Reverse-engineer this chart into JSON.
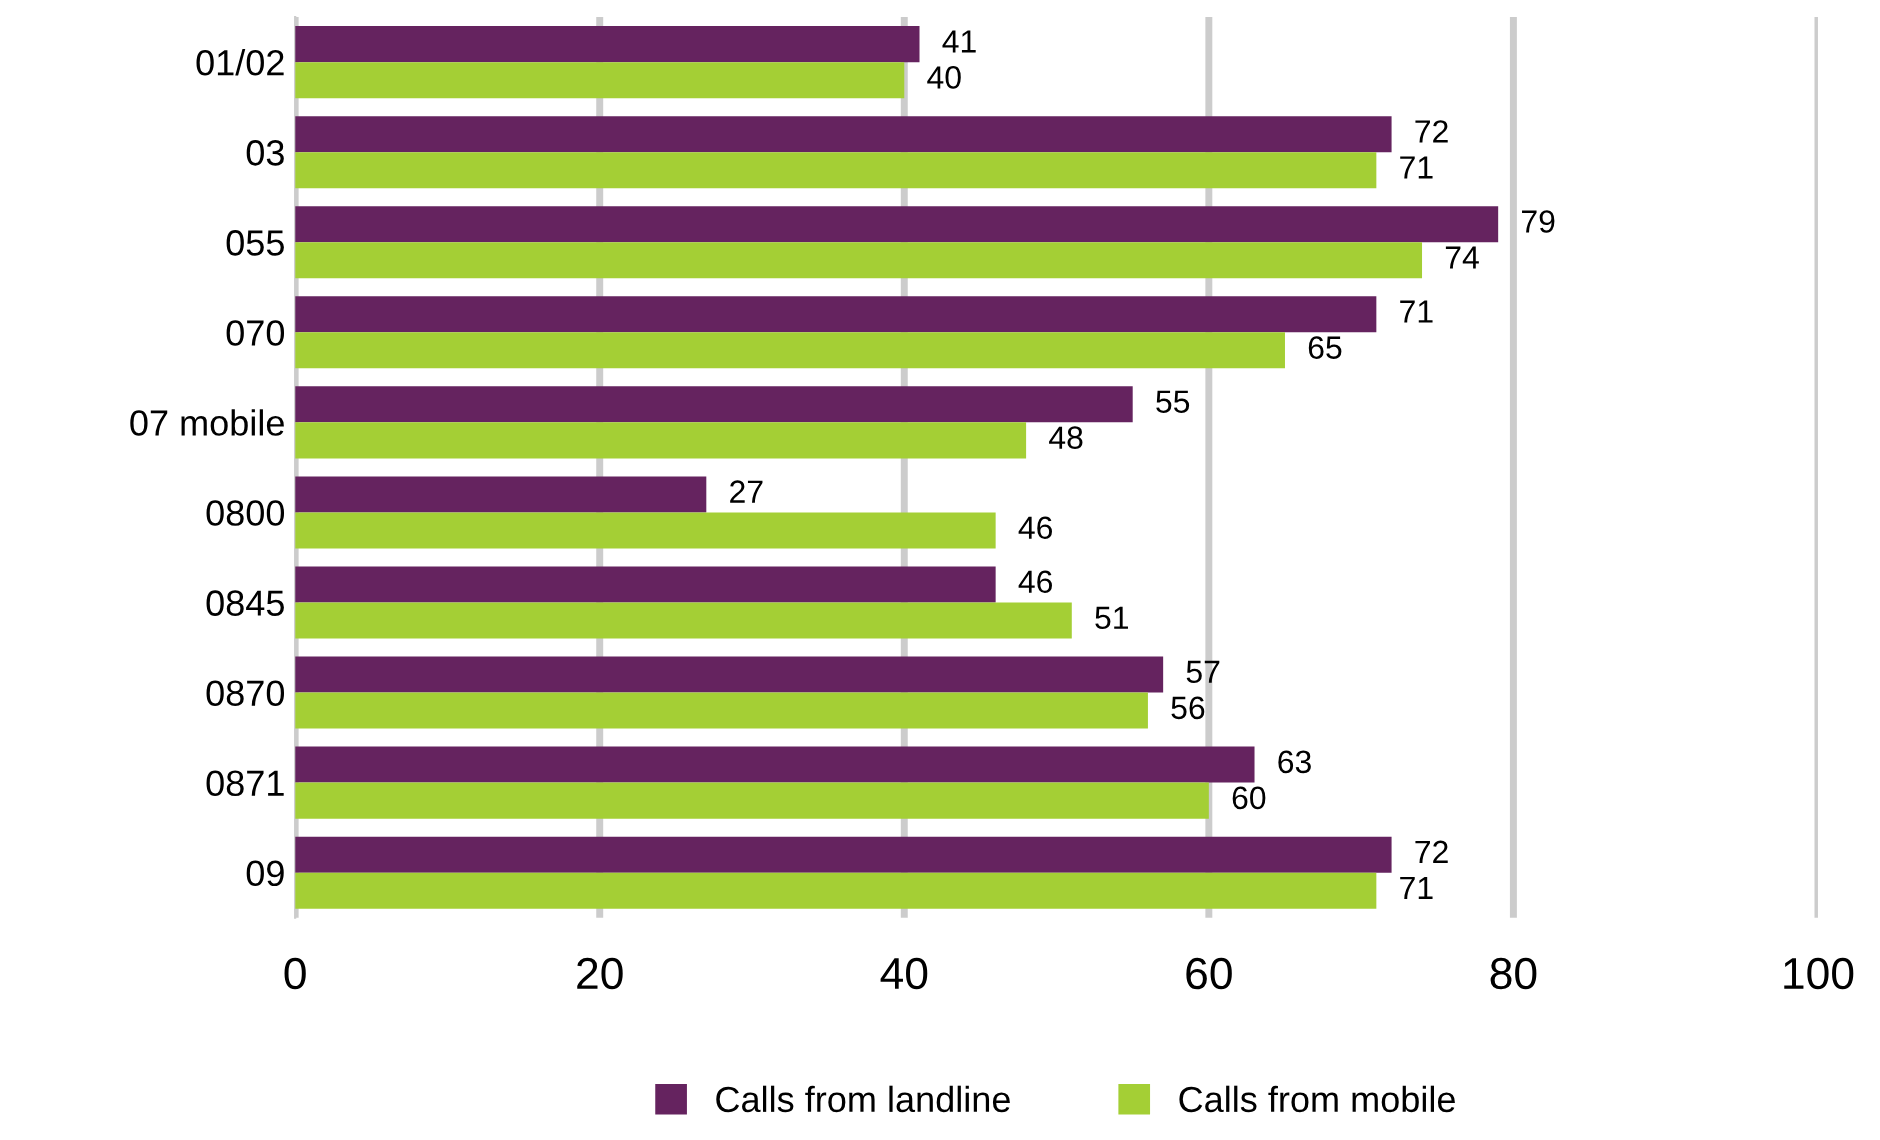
{
  "chart_data": {
    "type": "bar",
    "orientation": "horizontal",
    "categories": [
      "01/02",
      "03",
      "055",
      "070",
      "07 mobile",
      "0800",
      "0845",
      "0870",
      "0871",
      "09"
    ],
    "series": [
      {
        "name": "Calls from landline",
        "color": "#65235f",
        "values": [
          41,
          72,
          79,
          71,
          55,
          27,
          46,
          57,
          63,
          72
        ]
      },
      {
        "name": "Calls from mobile",
        "color": "#a4cf35",
        "values": [
          40,
          71,
          74,
          65,
          48,
          46,
          51,
          56,
          60,
          71
        ]
      }
    ],
    "xlim": [
      0,
      100
    ],
    "xticks": [
      0,
      20,
      40,
      60,
      80,
      100
    ],
    "grid": "x",
    "legend": "bottom",
    "data_labels": true
  }
}
